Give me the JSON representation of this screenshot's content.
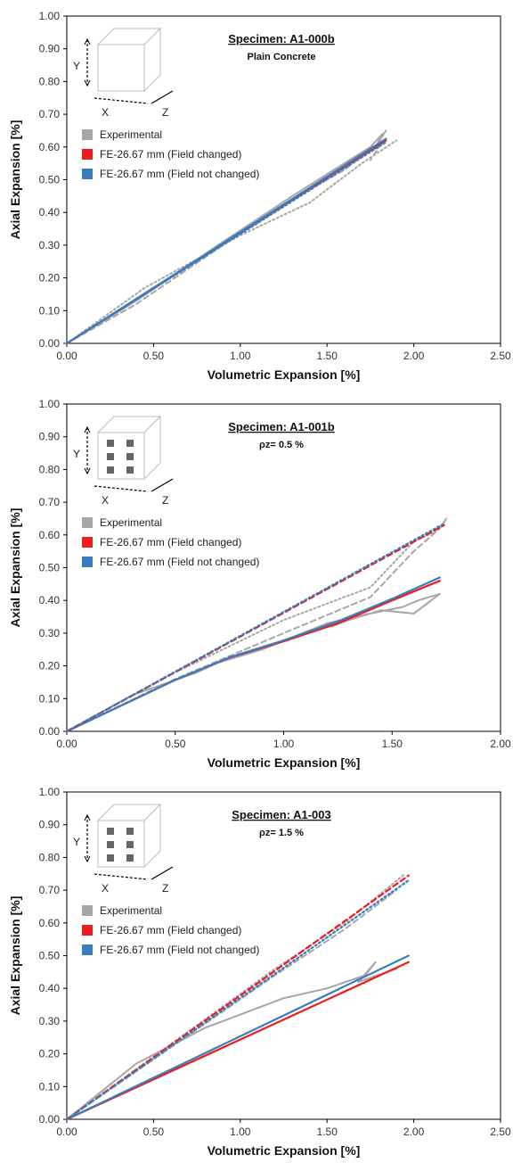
{
  "chart_data": [
    {
      "type": "line",
      "title": "Specimen: A1-000b",
      "subtitle": "Plain Concrete",
      "xlabel": "Volumetric Expansion [%]",
      "ylabel": "Axial Expansion [%]",
      "xlim": [
        0,
        2.5
      ],
      "ylim": [
        0,
        1.0
      ],
      "x_ticks": [
        "0.00",
        "0.50",
        "1.00",
        "1.50",
        "2.00",
        "2.50"
      ],
      "y_ticks": [
        "0.00",
        "0.10",
        "0.20",
        "0.30",
        "0.40",
        "0.50",
        "0.60",
        "0.70",
        "0.80",
        "0.90",
        "1.00"
      ],
      "legend_position": "upper-left",
      "cube_labels": {
        "x": "X",
        "y": "Y",
        "z": "Z"
      },
      "cube_bars": false,
      "legend": [
        {
          "name": "Experimental",
          "color": "#a6a6a6"
        },
        {
          "name": "FE-26.67 mm (Field changed)",
          "color": "#ee1c1c"
        },
        {
          "name": "FE-26.67 mm (Field not changed)",
          "color": "#3a7dbf"
        }
      ],
      "series": [
        {
          "name": "Experimental",
          "style": "solid",
          "color": "#a6a6a6",
          "x": [
            0,
            0.4,
            0.9,
            1.3,
            1.6,
            1.75,
            1.82,
            1.78,
            1.84
          ],
          "y": [
            0,
            0.13,
            0.31,
            0.45,
            0.55,
            0.6,
            0.64,
            0.6,
            0.65
          ]
        },
        {
          "name": "Experimental",
          "style": "dashed",
          "color": "#a6a6a6",
          "x": [
            0,
            0.4,
            0.9,
            1.3,
            1.6,
            1.72,
            1.8,
            1.75
          ],
          "y": [
            0,
            0.12,
            0.3,
            0.44,
            0.53,
            0.58,
            0.6,
            0.56
          ]
        },
        {
          "name": "Experimental",
          "style": "dotted",
          "color": "#a6a6a6",
          "x": [
            0,
            0.45,
            1.0,
            1.4,
            1.7,
            1.9
          ],
          "y": [
            0,
            0.17,
            0.33,
            0.43,
            0.55,
            0.62
          ]
        },
        {
          "name": "FE-26.67 mm (Field changed)",
          "style": "solid",
          "color": "#ee1c1c",
          "x": [
            0,
            1.84
          ],
          "y": [
            0,
            0.62
          ]
        },
        {
          "name": "FE-26.67 mm (Field not changed)",
          "style": "solid",
          "color": "#3a7dbf",
          "x": [
            0,
            1.84
          ],
          "y": [
            0,
            0.625
          ]
        },
        {
          "name": "FE-26.67 mm (Field not changed)",
          "style": "dotted",
          "color": "#3a7dbf",
          "x": [
            0,
            1.84
          ],
          "y": [
            0,
            0.615
          ]
        }
      ]
    },
    {
      "type": "line",
      "title": "Specimen: A1-001b",
      "subtitle": "ρz= 0.5 %",
      "xlabel": "Volumetric Expansion [%]",
      "ylabel": "Axial Expansion [%]",
      "xlim": [
        0,
        2.0
      ],
      "ylim": [
        0,
        1.0
      ],
      "x_ticks": [
        "0.00",
        "0.50",
        "1.00",
        "1.50",
        "2.00"
      ],
      "y_ticks": [
        "0.00",
        "0.10",
        "0.20",
        "0.30",
        "0.40",
        "0.50",
        "0.60",
        "0.70",
        "0.80",
        "0.90",
        "1.00"
      ],
      "legend_position": "upper-left",
      "cube_labels": {
        "x": "X",
        "y": "Y",
        "z": "Z"
      },
      "cube_bars": true,
      "legend": [
        {
          "name": "Experimental",
          "color": "#a6a6a6"
        },
        {
          "name": "FE-26.67 mm (Field changed)",
          "color": "#ee1c1c"
        },
        {
          "name": "FE-26.67 mm (Field not changed)",
          "color": "#3a7dbf"
        }
      ],
      "series": [
        {
          "name": "Experimental",
          "style": "solid",
          "color": "#a6a6a6",
          "x": [
            0,
            0.3,
            0.6,
            0.7,
            0.9,
            1.2,
            1.4,
            1.55,
            1.62,
            1.72,
            1.6,
            1.45,
            1.3,
            1.22
          ],
          "y": [
            0,
            0.11,
            0.18,
            0.21,
            0.25,
            0.33,
            0.36,
            0.38,
            0.4,
            0.42,
            0.36,
            0.37,
            0.34,
            0.32
          ]
        },
        {
          "name": "Experimental",
          "style": "dashed",
          "color": "#a6a6a6",
          "x": [
            0,
            0.5,
            1.0,
            1.4,
            1.6,
            1.72,
            1.75
          ],
          "y": [
            0,
            0.16,
            0.3,
            0.41,
            0.55,
            0.62,
            0.65
          ]
        },
        {
          "name": "Experimental",
          "style": "dotted",
          "color": "#a6a6a6",
          "x": [
            0,
            0.5,
            1.0,
            1.4,
            1.6,
            1.7
          ],
          "y": [
            0,
            0.18,
            0.34,
            0.44,
            0.58,
            0.61
          ]
        },
        {
          "name": "FE-26.67 mm (Field changed)",
          "style": "solid",
          "color": "#ee1c1c",
          "x": [
            0,
            0.5,
            0.75,
            1.0,
            1.25,
            1.5,
            1.72
          ],
          "y": [
            0,
            0.157,
            0.225,
            0.275,
            0.33,
            0.4,
            0.46
          ]
        },
        {
          "name": "FE-26.67 mm (Field not changed)",
          "style": "solid",
          "color": "#3a7dbf",
          "x": [
            0,
            0.5,
            0.75,
            1.0,
            1.25,
            1.5,
            1.72
          ],
          "y": [
            0,
            0.157,
            0.226,
            0.278,
            0.336,
            0.405,
            0.47
          ]
        },
        {
          "name": "FE-26.67 mm (Field changed)",
          "style": "dashed",
          "color": "#ee1c1c",
          "x": [
            0,
            1.74
          ],
          "y": [
            0,
            0.63
          ]
        },
        {
          "name": "FE-26.67 mm (Field not changed)",
          "style": "dotted",
          "color": "#3a7dbf",
          "x": [
            0,
            1.74
          ],
          "y": [
            0,
            0.635
          ]
        }
      ]
    },
    {
      "type": "line",
      "title": "Specimen: A1-003",
      "subtitle": "ρz= 1.5 %",
      "xlabel": "Volumetric Expansion [%]",
      "ylabel": "Axial Expansion [%]",
      "xlim": [
        0,
        2.5
      ],
      "ylim": [
        0,
        1.0
      ],
      "x_ticks": [
        "0.00",
        "0.50",
        "1.00",
        "1.50",
        "2.00",
        "2.50"
      ],
      "y_ticks": [
        "0.00",
        "0.10",
        "0.20",
        "0.30",
        "0.40",
        "0.50",
        "0.60",
        "0.70",
        "0.80",
        "0.90",
        "1.00"
      ],
      "legend_position": "upper-left",
      "cube_labels": {
        "x": "X",
        "y": "Y",
        "z": "Z"
      },
      "cube_bars": true,
      "legend": [
        {
          "name": "Experimental",
          "color": "#a6a6a6"
        },
        {
          "name": "FE-26.67 mm (Field changed)",
          "color": "#ee1c1c"
        },
        {
          "name": "FE-26.67 mm (Field not changed)",
          "color": "#3a7dbf"
        }
      ],
      "series": [
        {
          "name": "Experimental",
          "style": "solid",
          "color": "#a6a6a6",
          "x": [
            0,
            0.4,
            0.8,
            1.0,
            1.25,
            1.5,
            1.72,
            1.78,
            1.68,
            1.9
          ],
          "y": [
            0,
            0.17,
            0.28,
            0.32,
            0.37,
            0.4,
            0.44,
            0.48,
            0.42,
            0.46
          ]
        },
        {
          "name": "Experimental",
          "style": "dashed",
          "color": "#a6a6a6",
          "x": [
            0,
            0.6,
            1.2,
            1.6,
            1.9
          ],
          "y": [
            0,
            0.22,
            0.44,
            0.58,
            0.7
          ]
        },
        {
          "name": "Experimental",
          "style": "dotted",
          "color": "#a6a6a6",
          "x": [
            0,
            0.6,
            1.2,
            1.6,
            1.95
          ],
          "y": [
            0,
            0.23,
            0.46,
            0.6,
            0.75
          ]
        },
        {
          "name": "FE-26.67 mm (Field changed)",
          "style": "solid",
          "color": "#ee1c1c",
          "x": [
            0,
            1.97
          ],
          "y": [
            0,
            0.48
          ]
        },
        {
          "name": "FE-26.67 mm (Field not changed)",
          "style": "solid",
          "color": "#3a7dbf",
          "x": [
            0,
            1.97
          ],
          "y": [
            0,
            0.5
          ]
        },
        {
          "name": "FE-26.67 mm (Field changed)",
          "style": "dashed",
          "color": "#ee1c1c",
          "x": [
            0,
            1.97
          ],
          "y": [
            0,
            0.745
          ]
        },
        {
          "name": "FE-26.67 mm (Field not changed)",
          "style": "dotted",
          "color": "#3a7dbf",
          "x": [
            0,
            1.97
          ],
          "y": [
            0,
            0.73
          ]
        }
      ]
    }
  ]
}
